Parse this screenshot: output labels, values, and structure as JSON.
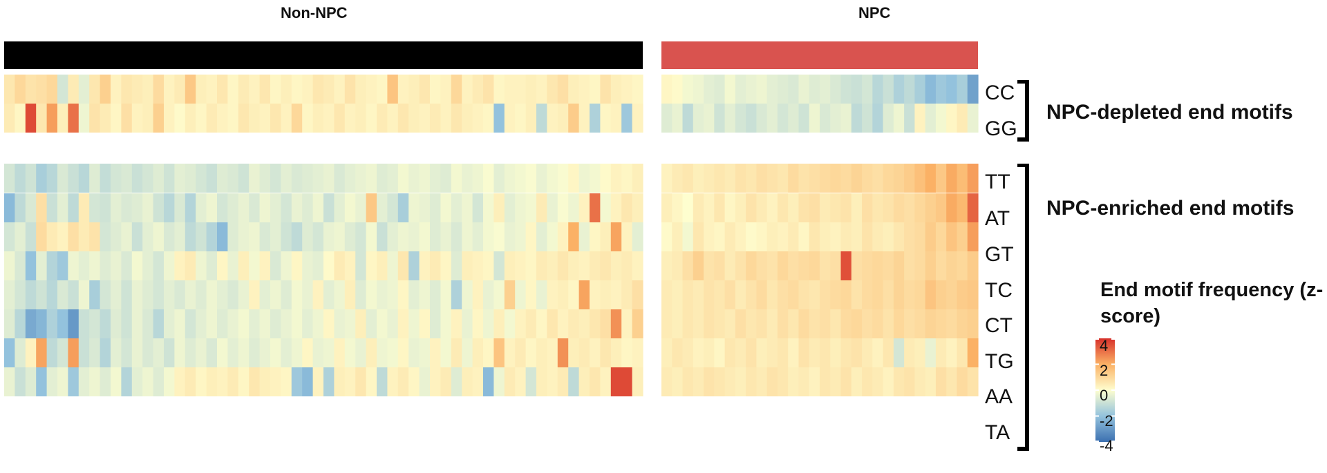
{
  "chart_data": {
    "type": "heatmap",
    "title": "",
    "groups": [
      {
        "name": "Non-NPC",
        "color": "#000000",
        "n_columns": 60
      },
      {
        "name": "NPC",
        "color": "#d9534f",
        "n_columns": 30
      }
    ],
    "row_groups": [
      {
        "label": "NPC-depleted end motifs",
        "rows": [
          "CC",
          "GG"
        ]
      },
      {
        "label": "NPC-enriched end motifs",
        "rows": [
          "TT",
          "AT",
          "GT",
          "TC",
          "CT",
          "TG",
          "AA",
          "TA"
        ]
      }
    ],
    "rows": [
      "CC",
      "GG",
      "TT",
      "AT",
      "GT",
      "TC",
      "CT",
      "TG",
      "AA",
      "TA"
    ],
    "values": {
      "CC": [
        0.6,
        1.0,
        0.7,
        0.8,
        1.0,
        -0.8,
        0.5,
        -0.5,
        0.6,
        1.2,
        0.3,
        0.6,
        0.5,
        0.4,
        0.9,
        0.3,
        0.5,
        1.4,
        0.4,
        0.3,
        0.6,
        0.2,
        0.5,
        0.3,
        0.6,
        0.2,
        0.4,
        0.2,
        0.3,
        0.6,
        0.5,
        0.3,
        0.7,
        0.4,
        0.3,
        0.2,
        1.5,
        0.3,
        0.4,
        0.6,
        0.2,
        0.3,
        1.0,
        0.3,
        0.5,
        0.7,
        0.2,
        0.3,
        0.3,
        0.4,
        0.3,
        0.6,
        0.8,
        0.4,
        0.3,
        0.2,
        0.7,
        0.4,
        0.3,
        0.2,
        0.2,
        0.1,
        -0.2,
        -0.3,
        -0.5,
        -0.6,
        -0.2,
        -0.5,
        -0.4,
        -0.3,
        -0.5,
        -0.6,
        -0.7,
        -0.4,
        -0.6,
        -0.5,
        -0.7,
        -0.9,
        -1.0,
        -0.8,
        -1.3,
        -1.0,
        -1.5,
        -1.2,
        -1.6,
        -2.2,
        -1.8,
        -2.0,
        -1.6,
        -2.8
      ],
      "GG": [
        0.5,
        0.2,
        3.6,
        0.6,
        2.3,
        0.4,
        3.0,
        -0.3,
        0.7,
        0.5,
        0.2,
        0.8,
        0.3,
        0.4,
        1.2,
        0.3,
        0.1,
        0.4,
        0.2,
        0.5,
        0.3,
        0.2,
        0.6,
        0.4,
        0.3,
        0.6,
        0.3,
        1.0,
        0.2,
        0.4,
        0.3,
        0.6,
        0.3,
        0.4,
        0.2,
        0.5,
        0.3,
        0.6,
        0.4,
        0.3,
        0.5,
        0.3,
        0.6,
        0.4,
        0.3,
        0.2,
        -2.0,
        0.3,
        0.2,
        0.4,
        -1.2,
        0.3,
        0.4,
        1.3,
        0.3,
        -1.5,
        0.2,
        0.3,
        -1.8,
        0.3,
        -0.6,
        -0.4,
        -1.2,
        -0.5,
        -0.4,
        -0.9,
        -0.5,
        -0.8,
        -1.0,
        -0.7,
        -0.5,
        -0.8,
        -0.6,
        -0.9,
        -0.3,
        -0.7,
        -0.5,
        -0.4,
        -1.2,
        -0.9,
        -1.4,
        -0.6,
        -0.3,
        -1.0,
        0.3,
        -0.5,
        -0.2,
        0.2,
        0.5,
        -0.4
      ],
      "TT": [
        -0.8,
        -1.2,
        -0.9,
        -1.6,
        -1.3,
        -0.7,
        -1.0,
        -1.3,
        -0.6,
        -1.1,
        -0.8,
        -0.7,
        -1.0,
        -0.8,
        -0.6,
        -0.9,
        -0.5,
        -0.6,
        -0.8,
        -1.0,
        -0.6,
        -0.7,
        -0.9,
        -0.4,
        -0.6,
        -0.8,
        -0.5,
        -0.7,
        -0.6,
        -0.5,
        -0.4,
        -0.7,
        -0.5,
        -0.4,
        -0.3,
        -0.6,
        -0.5,
        -0.2,
        -0.4,
        -0.3,
        -0.5,
        -0.6,
        -0.2,
        -0.4,
        -0.3,
        -0.1,
        -0.5,
        -0.3,
        -0.2,
        -0.1,
        -0.4,
        -0.2,
        -0.1,
        0.2,
        -0.3,
        -0.2,
        0.1,
        0.3,
        0.2,
        0.4,
        0.3,
        0.5,
        0.6,
        0.4,
        0.5,
        0.6,
        0.5,
        0.7,
        0.6,
        0.8,
        0.7,
        0.6,
        0.9,
        0.7,
        0.8,
        0.9,
        1.0,
        0.9,
        1.1,
        0.9,
        0.8,
        1.0,
        1.1,
        1.3,
        1.6,
        2.0,
        1.4,
        2.1,
        1.7,
        2.3
      ],
      "AT": [
        -2.2,
        -1.2,
        -0.7,
        0.8,
        -1.0,
        -0.5,
        -1.2,
        0.5,
        -0.8,
        -0.9,
        -0.5,
        -0.7,
        -0.6,
        -0.4,
        -0.9,
        -1.3,
        -0.7,
        -1.4,
        -0.5,
        -0.3,
        -0.8,
        -0.6,
        -0.4,
        -0.7,
        -0.3,
        -0.5,
        -0.8,
        -0.4,
        -0.6,
        -0.3,
        -1.0,
        -0.5,
        -0.2,
        -0.4,
        1.4,
        -0.5,
        -0.8,
        -1.6,
        -0.3,
        -0.4,
        -0.6,
        -0.2,
        -0.5,
        -0.3,
        -0.8,
        -0.2,
        0.4,
        -0.5,
        -0.3,
        -0.2,
        0.5,
        -0.4,
        -0.1,
        -0.3,
        0.3,
        3.0,
        -0.2,
        0.3,
        0.6,
        0.4,
        0.4,
        0.2,
        0.0,
        0.5,
        0.3,
        0.6,
        0.2,
        0.4,
        0.7,
        0.5,
        0.3,
        0.6,
        0.4,
        0.7,
        0.8,
        0.5,
        0.6,
        0.7,
        0.4,
        0.8,
        0.6,
        0.7,
        0.9,
        0.8,
        1.0,
        1.2,
        1.4,
        2.1,
        1.8,
        3.2
      ],
      "GT": [
        -0.8,
        -0.5,
        -1.0,
        0.9,
        0.5,
        0.3,
        0.8,
        0.5,
        0.7,
        -0.8,
        -0.6,
        -0.4,
        -1.0,
        -0.5,
        -0.3,
        -0.7,
        -0.5,
        -1.2,
        -0.9,
        -1.4,
        -2.2,
        -0.6,
        -0.4,
        -0.3,
        -0.7,
        -0.5,
        -0.9,
        -1.2,
        -0.6,
        -0.8,
        -0.4,
        -0.3,
        -0.6,
        -0.8,
        -0.2,
        -1.0,
        -0.5,
        -0.3,
        -0.4,
        -0.2,
        -0.6,
        -0.4,
        -0.7,
        -0.3,
        -0.5,
        -0.2,
        -0.1,
        -0.4,
        -0.3,
        0.2,
        -0.5,
        -0.2,
        0.3,
        2.0,
        -0.4,
        0.2,
        0.4,
        2.2,
        0.3,
        -0.5,
        0.1,
        0.4,
        -0.2,
        0.6,
        0.3,
        0.2,
        0.5,
        0.3,
        0.1,
        0.2,
        0.4,
        0.3,
        0.5,
        0.2,
        0.6,
        0.4,
        0.3,
        0.5,
        0.4,
        0.7,
        0.5,
        0.4,
        0.6,
        0.8,
        0.9,
        1.3,
        1.0,
        1.5,
        1.2,
        2.3
      ],
      "TC": [
        -0.3,
        -0.7,
        -2.0,
        -0.5,
        -1.4,
        -1.8,
        -0.3,
        -0.5,
        -0.3,
        -0.6,
        -0.4,
        -0.7,
        -0.2,
        -0.5,
        -0.8,
        -0.3,
        0.3,
        0.5,
        -0.3,
        -0.6,
        0.2,
        -0.4,
        0.4,
        -0.2,
        0.3,
        -0.7,
        -0.3,
        0.2,
        -0.4,
        -0.5,
        0.1,
        0.5,
        0.3,
        -0.8,
        0.2,
        0.4,
        -0.3,
        0.6,
        -1.5,
        0.3,
        0.5,
        0.2,
        -0.6,
        0.4,
        0.3,
        0.2,
        -0.8,
        0.4,
        0.3,
        0.2,
        0.5,
        0.4,
        0.6,
        0.4,
        0.3,
        0.5,
        0.6,
        0.4,
        0.5,
        0.3,
        0.4,
        0.5,
        0.8,
        1.2,
        0.7,
        0.8,
        0.5,
        0.7,
        1.0,
        0.8,
        0.7,
        1.0,
        0.8,
        0.9,
        1.0,
        0.7,
        0.8,
        3.5,
        0.8,
        0.9,
        1.0,
        0.9,
        1.1,
        0.8,
        0.9,
        1.2,
        0.9,
        1.1,
        1.0,
        1.3
      ],
      "CT": [
        -0.5,
        -0.8,
        -1.2,
        -0.9,
        -1.3,
        -0.7,
        -1.0,
        -0.3,
        -1.6,
        -0.8,
        -0.5,
        -0.9,
        -0.4,
        -0.6,
        -0.8,
        -0.5,
        -0.7,
        -0.4,
        -0.6,
        -0.3,
        -0.5,
        -0.7,
        -0.4,
        0.3,
        -0.5,
        -0.3,
        -0.6,
        -0.2,
        -0.4,
        0.3,
        -0.5,
        -0.3,
        0.4,
        -0.6,
        -0.2,
        -0.4,
        -0.3,
        0.2,
        -0.5,
        -0.3,
        -0.6,
        -0.2,
        -1.5,
        -0.3,
        0.3,
        -0.4,
        -0.2,
        1.2,
        -0.3,
        0.2,
        -0.4,
        0.3,
        0.4,
        0.2,
        2.2,
        0.3,
        0.4,
        0.3,
        0.5,
        0.8,
        0.5,
        0.4,
        0.6,
        0.5,
        0.7,
        0.6,
        0.8,
        0.5,
        0.7,
        0.9,
        0.6,
        0.8,
        0.9,
        0.7,
        0.6,
        0.8,
        0.9,
        1.0,
        0.7,
        0.9,
        1.0,
        0.8,
        1.1,
        0.9,
        1.0,
        1.5,
        1.2,
        1.1,
        1.3,
        1.4
      ],
      "TG": [
        -0.6,
        -1.3,
        -2.6,
        -2.3,
        -1.5,
        -2.0,
        -3.0,
        -1.0,
        -0.8,
        -1.2,
        -0.6,
        -0.9,
        -0.4,
        -0.7,
        -1.3,
        -0.5,
        -0.3,
        -0.8,
        -0.5,
        -0.3,
        -0.6,
        -0.4,
        -0.2,
        -0.5,
        -0.3,
        -0.6,
        -0.4,
        -0.2,
        -0.5,
        -0.3,
        0.2,
        -0.4,
        -0.3,
        0.4,
        -0.5,
        -0.2,
        -0.4,
        0.3,
        -0.3,
        0.2,
        -0.6,
        -0.2,
        0.3,
        -0.4,
        0.2,
        -0.3,
        0.4,
        -0.2,
        0.3,
        0.5,
        0.2,
        0.6,
        0.3,
        0.5,
        0.4,
        0.6,
        0.8,
        2.5,
        0.3,
        1.2,
        0.5,
        0.4,
        0.6,
        0.5,
        0.7,
        0.6,
        0.5,
        0.8,
        0.6,
        0.7,
        0.5,
        0.8,
        0.6,
        0.9,
        0.7,
        0.8,
        0.6,
        0.9,
        1.0,
        0.8,
        0.9,
        0.7,
        1.0,
        0.8,
        0.9,
        1.1,
        1.0,
        0.9,
        1.1,
        1.2
      ],
      "AA": [
        -2.0,
        -0.6,
        0.3,
        2.2,
        -1.2,
        -0.8,
        2.3,
        -1.0,
        -0.7,
        -1.4,
        -0.5,
        -0.8,
        -0.4,
        -0.7,
        -0.5,
        -0.9,
        -0.3,
        -0.6,
        -0.4,
        -0.7,
        -0.2,
        -0.5,
        -0.3,
        -0.6,
        -0.4,
        -0.2,
        -0.5,
        -0.3,
        0.2,
        -0.4,
        -0.3,
        0.3,
        -0.2,
        -0.4,
        0.4,
        -0.3,
        -0.2,
        0.2,
        -0.4,
        -0.3,
        0.3,
        -0.2,
        0.5,
        -0.3,
        0.4,
        0.2,
        1.5,
        0.3,
        0.5,
        0.2,
        0.4,
        0.3,
        2.5,
        0.4,
        0.5,
        0.3,
        0.6,
        0.4,
        0.2,
        0.3,
        0.4,
        0.6,
        0.5,
        0.3,
        0.4,
        0.2,
        0.6,
        0.5,
        0.7,
        0.4,
        0.5,
        0.6,
        0.3,
        0.7,
        0.5,
        0.6,
        0.4,
        0.6,
        0.7,
        0.5,
        0.3,
        0.6,
        -0.8,
        0.5,
        0.4,
        -0.4,
        0.5,
        0.3,
        0.6,
        2.0
      ],
      "TA": [
        -0.4,
        -1.0,
        -0.6,
        -2.0,
        -0.5,
        -0.3,
        -1.8,
        -0.5,
        -0.3,
        -0.6,
        -0.2,
        -1.4,
        -0.5,
        -0.3,
        -0.6,
        -0.2,
        0.3,
        0.5,
        0.2,
        0.4,
        0.3,
        0.5,
        0.2,
        0.6,
        0.4,
        0.3,
        0.2,
        -1.8,
        -2.2,
        0.3,
        -1.5,
        0.4,
        0.3,
        0.6,
        0.2,
        -1.2,
        0.3,
        0.5,
        0.2,
        -0.4,
        0.3,
        0.5,
        -0.6,
        0.4,
        0.3,
        -2.2,
        -0.3,
        0.5,
        0.3,
        -0.8,
        0.4,
        0.3,
        0.5,
        -1.2,
        0.4,
        0.6,
        0.3,
        3.6,
        3.6,
        0.4,
        0.5,
        0.4,
        0.6,
        0.5,
        0.7,
        0.6,
        0.5,
        0.4,
        0.6,
        0.5,
        0.7,
        0.6,
        0.4,
        0.5,
        0.3,
        0.6,
        0.5,
        0.7,
        0.4,
        0.6,
        0.5,
        0.3,
        0.6,
        0.7,
        0.5,
        0.4,
        0.8,
        0.6,
        0.9,
        0.7
      ]
    },
    "color_scale": {
      "title": "End motif frequency (z-score)",
      "ticks": [
        4,
        2,
        0,
        -2,
        -4
      ],
      "tick_labels": [
        "4",
        "2",
        "0",
        "-2",
        "-4"
      ],
      "range": [
        -4,
        4
      ],
      "colors": [
        "#3b6fb0",
        "#93c2dd",
        "#fefecf",
        "#fbb165",
        "#d7302a"
      ]
    }
  }
}
